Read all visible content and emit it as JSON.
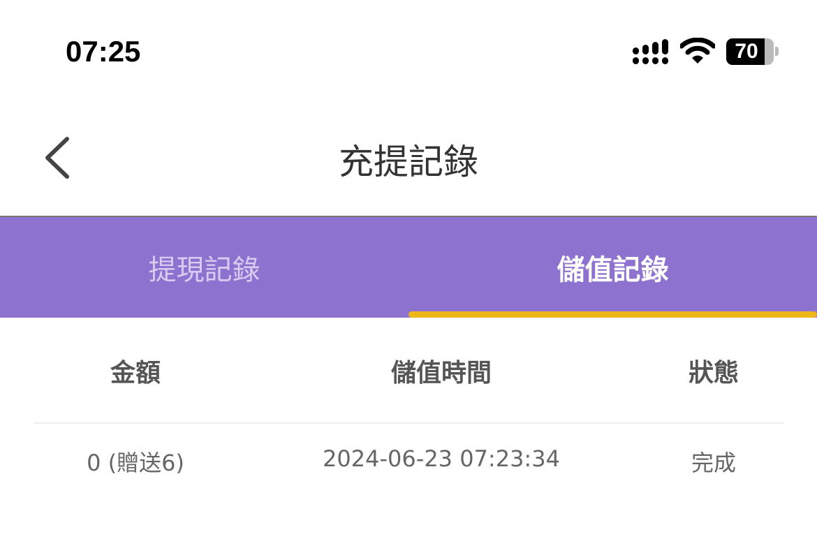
{
  "status_bar": {
    "time": "07:25",
    "battery_percent": "70",
    "battery_level": 70,
    "icons": [
      "signal-icon",
      "wifi-icon",
      "battery-icon"
    ]
  },
  "header": {
    "title": "充提記錄",
    "back_icon": "chevron-left-icon"
  },
  "tabs": [
    {
      "label": "提現記錄",
      "active": false
    },
    {
      "label": "儲值記錄",
      "active": true
    }
  ],
  "colors": {
    "tab_bar": "#8e72cf",
    "indicator": "#eeb719"
  },
  "table": {
    "columns": [
      "金額",
      "儲值時間",
      "狀態"
    ],
    "rows": [
      {
        "amount": "0 (贈送6)",
        "time": "2024-06-23 07:23:34",
        "status": "完成"
      }
    ]
  }
}
